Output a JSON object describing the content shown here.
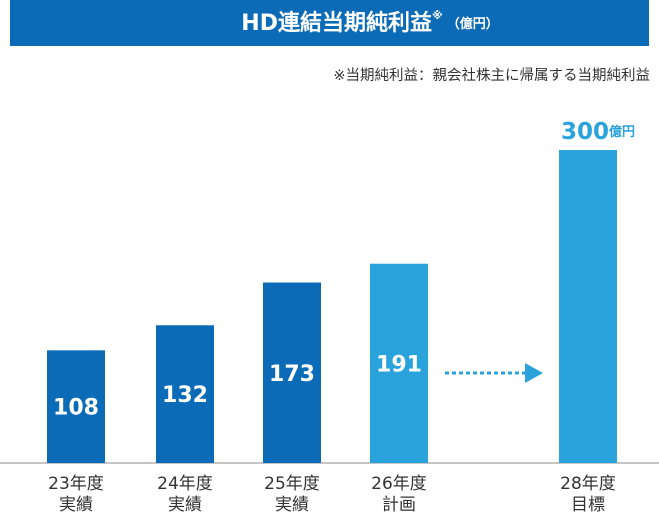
{
  "chart_data": {
    "type": "bar",
    "title": "HD連結当期純利益",
    "title_mark": "※",
    "title_unit": "（億円）",
    "note": "※当期純利益：親会社株主に帰属する当期純利益",
    "categories": [
      "23年度\n実績",
      "24年度\n実績",
      "25年度\n実績",
      "26年度\n計画",
      "28年度\n目標"
    ],
    "values": [
      108,
      132,
      173,
      191,
      300
    ],
    "colors": [
      "#0b6bb6",
      "#0b6bb6",
      "#0b6bb6",
      "#2aa3dd",
      "#2aa3dd"
    ],
    "value_unit": "億円",
    "ylim": [
      0,
      300
    ]
  }
}
